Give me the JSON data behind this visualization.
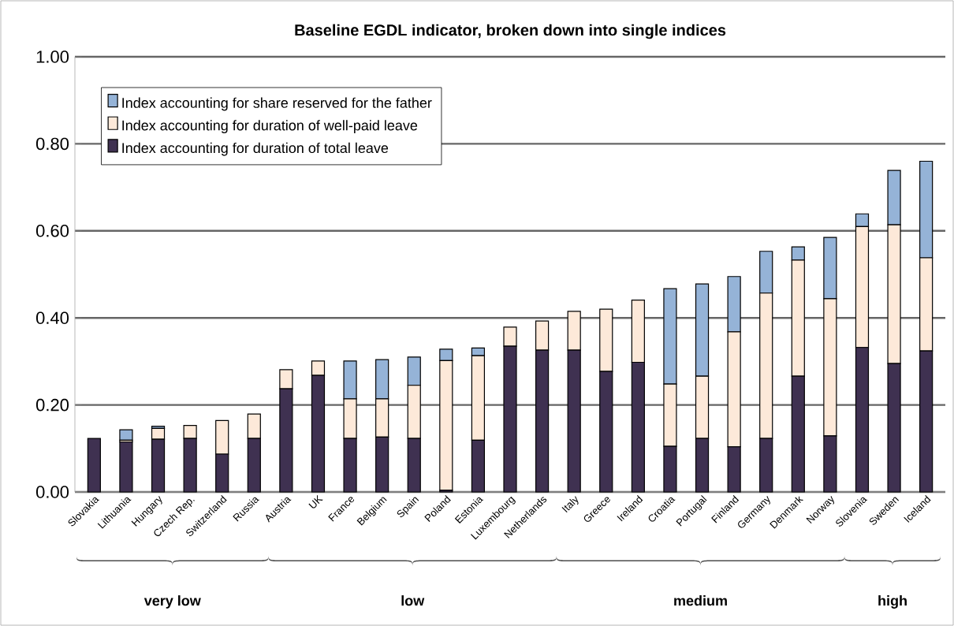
{
  "chart_data": {
    "type": "bar",
    "stacked": true,
    "title": "Baseline EGDL indicator, broken down into single indices",
    "categories": [
      "Slovakia",
      "Lithuania",
      "Hungary",
      "Czech Rep.",
      "Switzerland",
      "Russia",
      "Austria",
      "UK",
      "France",
      "Belgium",
      "Spain",
      "Poland",
      "Estonia",
      "Luxembourg",
      "Netherlands",
      "Italy",
      "Greece",
      "Ireland",
      "Croatia",
      "Portugal",
      "Finland",
      "Germany",
      "Denmark",
      "Norway",
      "Slovenia",
      "Sweden",
      "Iceland"
    ],
    "series": [
      {
        "name": "Index accounting for duration of total leave",
        "color": "#3f3151",
        "values": [
          0.123,
          0.115,
          0.121,
          0.123,
          0.087,
          0.123,
          0.237,
          0.268,
          0.123,
          0.126,
          0.123,
          0.004,
          0.119,
          0.335,
          0.326,
          0.326,
          0.277,
          0.298,
          0.105,
          0.123,
          0.104,
          0.123,
          0.266,
          0.129,
          0.332,
          0.295,
          0.324
        ]
      },
      {
        "name": "Index accounting for duration of well-paid leave",
        "color": "#fde9d9",
        "values": [
          null,
          0.004,
          0.025,
          0.03,
          0.077,
          0.056,
          0.044,
          0.033,
          0.091,
          0.088,
          0.122,
          0.298,
          0.194,
          0.044,
          0.067,
          0.089,
          0.143,
          0.143,
          0.143,
          0.143,
          0.264,
          0.334,
          0.267,
          0.315,
          0.278,
          0.319,
          0.214
        ]
      },
      {
        "name": "Index accounting for share reserved for the father",
        "color": "#95b3d7",
        "values": [
          null,
          0.024,
          0.005,
          null,
          null,
          null,
          null,
          null,
          0.087,
          0.09,
          0.065,
          0.026,
          0.018,
          null,
          null,
          null,
          null,
          null,
          0.219,
          0.212,
          0.127,
          0.096,
          0.03,
          0.141,
          0.029,
          0.125,
          0.222
        ]
      }
    ],
    "ylim": [
      0,
      1
    ],
    "yticks": [
      {
        "value": 0,
        "label": "0.00"
      },
      {
        "value": 0.2,
        "label": "0.20"
      },
      {
        "value": 0.4,
        "label": "0.40"
      },
      {
        "value": 0.6,
        "label": "0.60"
      },
      {
        "value": 0.8,
        "label": "0.80"
      },
      {
        "value": 1,
        "label": "1.00"
      }
    ],
    "grid": "y",
    "legend": "top left",
    "annotations": [
      "very low",
      "low",
      "medium",
      "high"
    ]
  }
}
